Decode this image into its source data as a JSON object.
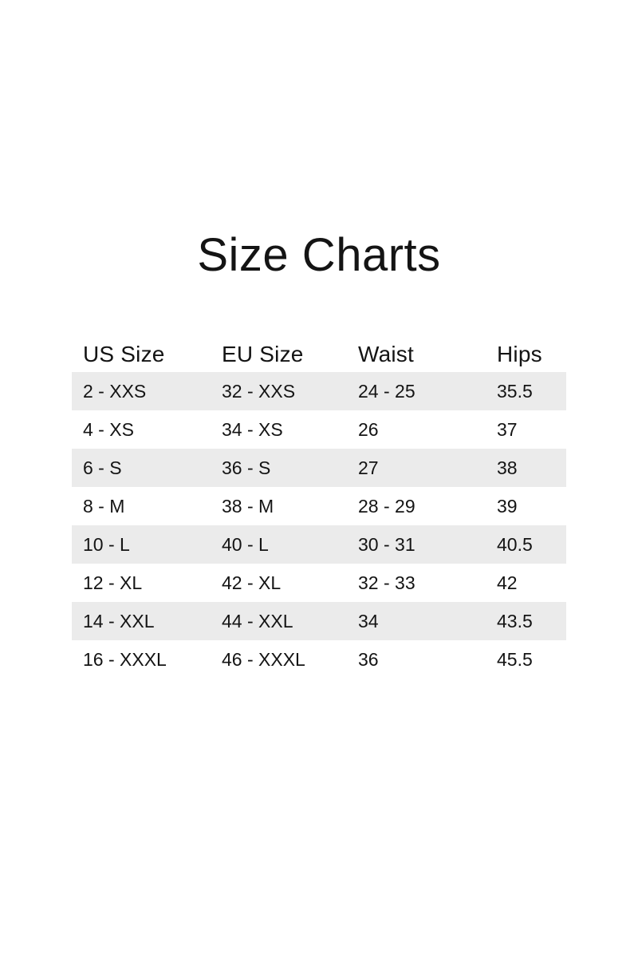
{
  "page": {
    "title": "Size Charts"
  },
  "colors": {
    "stripe": "#ebebeb",
    "text": "#141414",
    "background": "#ffffff"
  },
  "chart_data": {
    "type": "table",
    "title": "Size Charts",
    "columns": [
      "US Size",
      "EU Size",
      "Waist",
      "Hips"
    ],
    "rows": [
      [
        "2 - XXS",
        "32 - XXS",
        "24 - 25",
        "35.5"
      ],
      [
        "4 - XS",
        "34 - XS",
        "26",
        "37"
      ],
      [
        "6 - S",
        "36 - S",
        "27",
        "38"
      ],
      [
        "8 - M",
        "38 - M",
        "28 - 29",
        "39"
      ],
      [
        "10 - L",
        "40 - L",
        "30 - 31",
        "40.5"
      ],
      [
        "12 - XL",
        "42 - XL",
        "32 - 33",
        "42"
      ],
      [
        "14 - XXL",
        "44 - XXL",
        "34",
        "43.5"
      ],
      [
        "16 - XXXL",
        "46 - XXXL",
        "36",
        "45.5"
      ]
    ],
    "layout": {
      "striped_rows": "odd",
      "stripe_color": "#ebebeb",
      "grid": false,
      "header_position": "top"
    }
  }
}
